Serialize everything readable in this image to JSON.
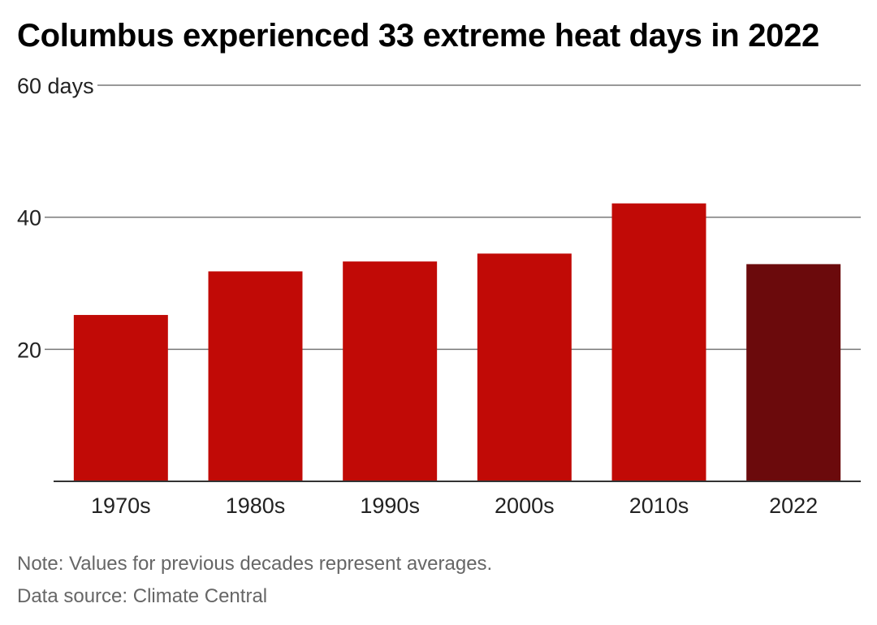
{
  "title": "Columbus experienced 33 extreme heat days in 2022",
  "footer": {
    "note": "Note: Values for previous decades represent averages.",
    "source": "Data source: Climate Central"
  },
  "colors": {
    "decade_bar": "#c10a06",
    "highlight_bar": "#6b0a0c",
    "gridline": "#333333"
  },
  "chart_data": {
    "type": "bar",
    "categories": [
      "1970s",
      "1980s",
      "1990s",
      "2000s",
      "2010s",
      "2022"
    ],
    "values": [
      25.2,
      31.8,
      33.3,
      34.5,
      42.1,
      32.9
    ],
    "highlight_category": "2022",
    "ylim": [
      0,
      60
    ],
    "yticks": [
      {
        "value": 20,
        "label": "20"
      },
      {
        "value": 40,
        "label": "40"
      },
      {
        "value": 60,
        "label": "60 days"
      }
    ],
    "grid": true
  }
}
